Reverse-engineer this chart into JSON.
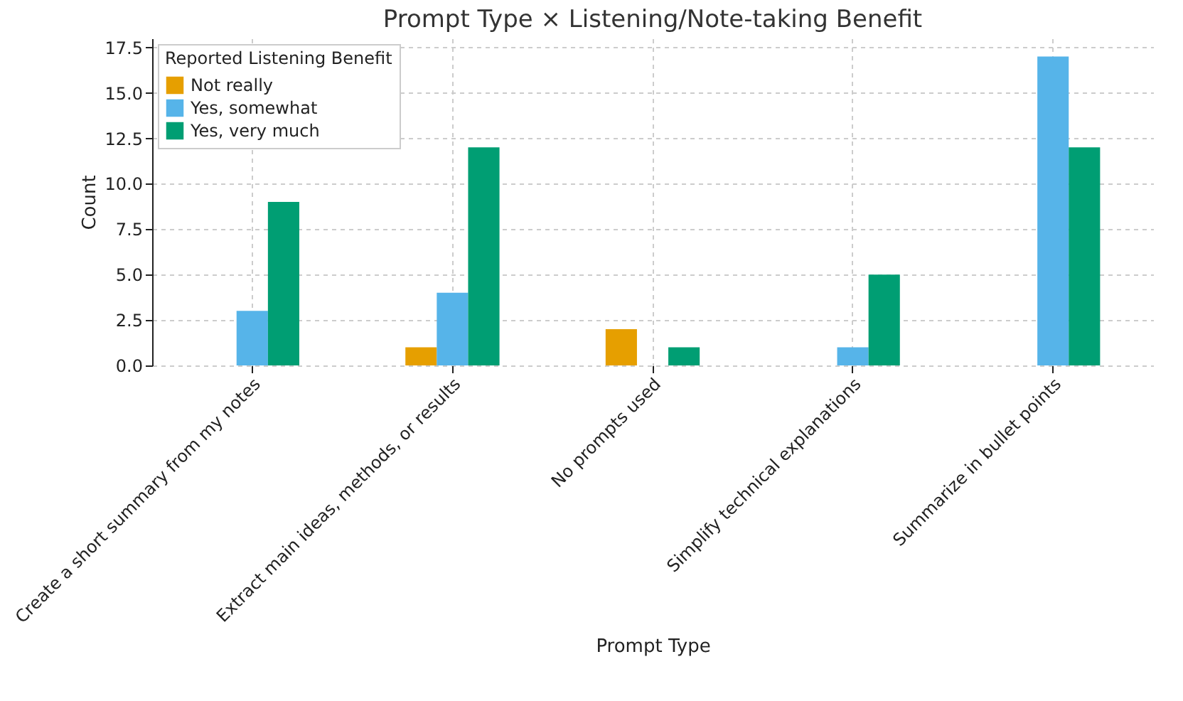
{
  "chart_data": {
    "type": "bar",
    "title": "Prompt Type × Listening/Note-taking Benefit",
    "xlabel": "Prompt Type",
    "ylabel": "Count",
    "legend_title": "Reported Listening Benefit",
    "categories": [
      "Create a short summary from my notes",
      "Extract main ideas, methods, or results",
      "No prompts used",
      "Simplify technical explanations",
      "Summarize in bullet points"
    ],
    "series": [
      {
        "name": "Not really",
        "color": "#e69f00",
        "values": [
          null,
          1,
          2,
          null,
          null
        ]
      },
      {
        "name": "Yes, somewhat",
        "color": "#56b4e9",
        "values": [
          3,
          4,
          null,
          1,
          17
        ]
      },
      {
        "name": "Yes, very much",
        "color": "#009e73",
        "values": [
          9,
          12,
          1,
          5,
          12
        ]
      }
    ],
    "ylim": [
      0,
      18
    ],
    "yticks": [
      {
        "value": 0,
        "label": "0.0"
      },
      {
        "value": 2.5,
        "label": "2.5"
      },
      {
        "value": 5,
        "label": "5.0"
      },
      {
        "value": 7.5,
        "label": "7.5"
      },
      {
        "value": 10,
        "label": "10.0"
      },
      {
        "value": 12.5,
        "label": "12.5"
      },
      {
        "value": 15,
        "label": "15.0"
      },
      {
        "value": 17.5,
        "label": "17.5"
      }
    ],
    "grid": true,
    "legend": "top left"
  }
}
